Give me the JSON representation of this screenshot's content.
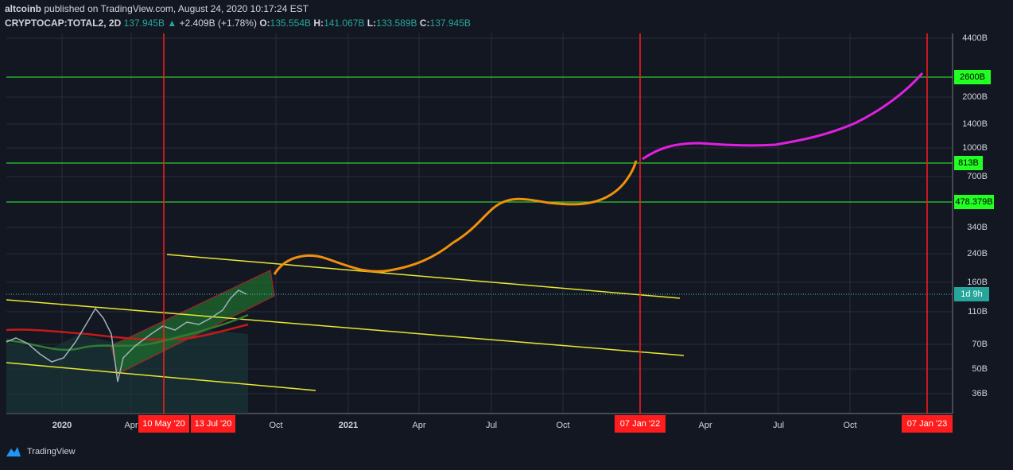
{
  "header": {
    "author": "altcoinb",
    "published": "published on TradingView.com, August 24, 2020 10:17:24 EST",
    "symbol": "CRYPTOCAP:TOTAL2, 2D",
    "last": "137.945B",
    "arrow": "▲",
    "change": "+2.409B (+1.78%)",
    "open_label": "O:",
    "open": "135.554B",
    "high_label": "H:",
    "high": "141.067B",
    "low_label": "L:",
    "low": "133.589B",
    "close_label": "C:",
    "close": "137.945B"
  },
  "price_axis": [
    "4400B",
    "2000B",
    "1400B",
    "1000B",
    "700B",
    "340B",
    "240B",
    "160B",
    "110B",
    "70B",
    "50B",
    "36B"
  ],
  "badges": [
    "2600B",
    "813B",
    "478.379B",
    "1d 9h"
  ],
  "time_axis": [
    "2020",
    "Apr",
    "Oct",
    "2021",
    "Apr",
    "Jul",
    "Oct",
    "Apr",
    "Jul",
    "Oct"
  ],
  "time_markers": [
    "10 May '20",
    "13 Jul '20",
    "07 Jan '22",
    "07 Jan '23"
  ],
  "footer": {
    "brand": "TradingView"
  }
}
